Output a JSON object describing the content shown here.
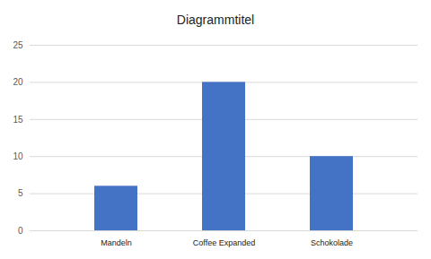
{
  "chart_data": {
    "type": "bar",
    "title": "Diagrammtitel",
    "categories": [
      "Mandeln",
      "Coffee Expanded",
      "Schokolade"
    ],
    "values": [
      6,
      20,
      10
    ],
    "color": "#4472c4",
    "ylim": [
      0,
      25
    ],
    "yticks": [
      0,
      5,
      10,
      15,
      20,
      25
    ],
    "grid": true
  }
}
